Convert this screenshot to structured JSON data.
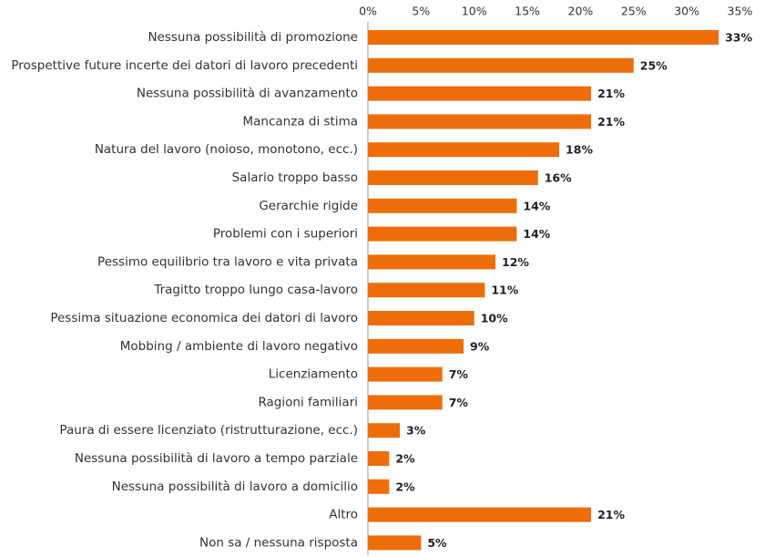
{
  "chart_data": {
    "type": "bar",
    "orientation": "horizontal",
    "title": "",
    "xlabel": "",
    "ylabel": "",
    "xlim": [
      0,
      35
    ],
    "x_ticks": [
      0,
      5,
      10,
      15,
      20,
      25,
      30,
      35
    ],
    "x_tick_labels": [
      "0%",
      "5%",
      "10%",
      "15%",
      "20%",
      "25%",
      "30%",
      "35%"
    ],
    "x_axis_position": "top",
    "grid": false,
    "legend": "none",
    "bar_color": "#ee6d0b",
    "axis_color": "#999999",
    "categories": [
      "Nessuna possibilità di promozione",
      "Prospettive future incerte dei datori di lavoro precedenti",
      "Nessuna possibilità di avanzamento",
      "Mancanza di stima",
      "Natura del lavoro (noioso, monotono, ecc.)",
      "Salario troppo basso",
      "Gerarchie rigide",
      "Problemi con i superiori",
      "Pessimo equilibrio tra lavoro e vita privata",
      "Tragitto troppo lungo casa-lavoro",
      "Pessima situazione economica dei datori di lavoro",
      "Mobbing / ambiente di lavoro negativo",
      "Licenziamento",
      "Ragioni familiari",
      "Paura di essere licenziato (ristrutturazione, ecc.)",
      "Nessuna possibilità di lavoro a tempo parziale",
      "Nessuna possibilità di lavoro a domicilio",
      "Altro",
      "Non sa / nessuna risposta"
    ],
    "values": [
      33,
      25,
      21,
      21,
      18,
      16,
      14,
      14,
      12,
      11,
      10,
      9,
      7,
      7,
      3,
      2,
      2,
      21,
      5
    ],
    "value_labels": [
      "33%",
      "25%",
      "21%",
      "21%",
      "18%",
      "16%",
      "14%",
      "14%",
      "12%",
      "11%",
      "10%",
      "9%",
      "7%",
      "7%",
      "3%",
      "2%",
      "2%",
      "21%",
      "5%"
    ]
  }
}
